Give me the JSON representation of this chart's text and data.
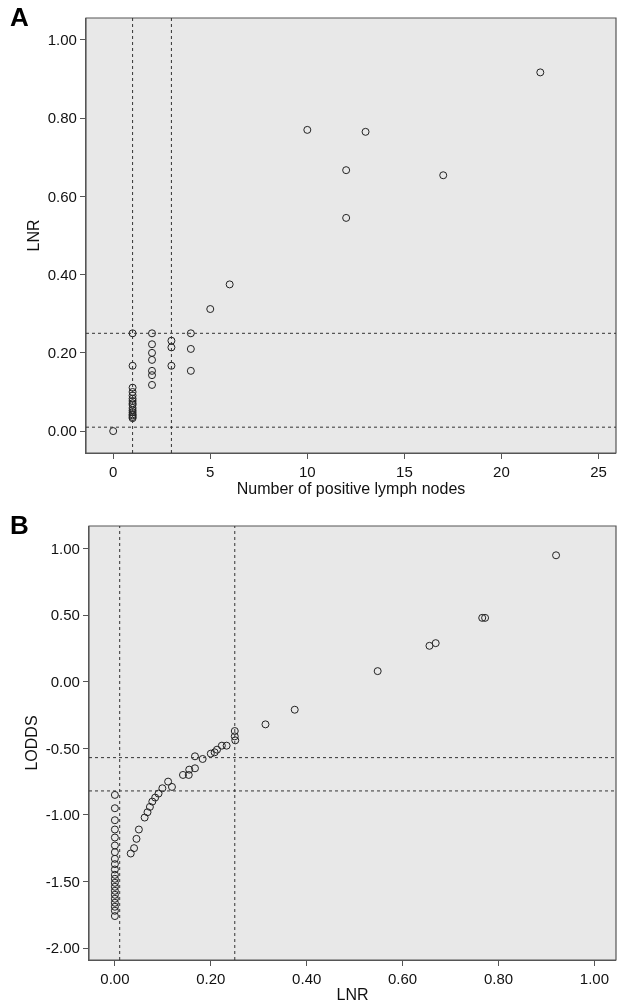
{
  "chart_data": [
    {
      "type": "scatter",
      "title": "A",
      "xlabel": "Number of positive lymph nodes",
      "ylabel": "LNR",
      "marker": "circle",
      "grid": false,
      "xlim": [
        -1.4,
        25.9
      ],
      "ylim": [
        -0.056,
        1.056
      ],
      "xticks": [
        0,
        5,
        10,
        15,
        20,
        25
      ],
      "yticks": [
        {
          "value": 0,
          "label": "0.00"
        },
        {
          "value": 0.2,
          "label": "0.20"
        },
        {
          "value": 0.4,
          "label": "0.40"
        },
        {
          "value": 0.6,
          "label": "0.60"
        },
        {
          "value": 0.8,
          "label": "0.80"
        },
        {
          "value": 1,
          "label": "1.00"
        }
      ],
      "ref_lines": [
        {
          "axis": "x",
          "value": 1,
          "line_style": "dotted",
          "color": "#333333"
        },
        {
          "axis": "x",
          "value": 3,
          "line_style": "dotted",
          "color": "#333333"
        },
        {
          "axis": "y",
          "value": 0.25,
          "line_style": "dotted",
          "color": "#333333"
        },
        {
          "axis": "y",
          "value": 0.01,
          "line_style": "dotted",
          "color": "#333333"
        }
      ],
      "series": [
        {
          "color": "#222222",
          "x": [
            0,
            1,
            1,
            1,
            1,
            1,
            1,
            1,
            1,
            1,
            1,
            1,
            1,
            1,
            1,
            1,
            1,
            2,
            2,
            2,
            2,
            2,
            2,
            2,
            3,
            3,
            3,
            4,
            4,
            4,
            5,
            6,
            10,
            12,
            12,
            13,
            17,
            22
          ],
          "values": [
            0,
            0.25,
            0.167,
            0.111,
            0.1,
            0.091,
            0.083,
            0.077,
            0.071,
            0.067,
            0.059,
            0.053,
            0.048,
            0.043,
            0.04,
            0.036,
            0.033,
            0.25,
            0.222,
            0.2,
            0.182,
            0.154,
            0.143,
            0.118,
            0.231,
            0.214,
            0.167,
            0.25,
            0.21,
            0.154,
            0.312,
            0.375,
            0.77,
            0.667,
            0.545,
            0.765,
            0.654,
            0.917
          ]
        }
      ]
    },
    {
      "type": "scatter",
      "title": "B",
      "xlabel": "LNR",
      "ylabel": "LODDS",
      "marker": "circle",
      "grid": false,
      "xlim": [
        -0.054,
        1.045
      ],
      "ylim": [
        -2.09,
        1.17
      ],
      "xticks": [
        {
          "value": 0,
          "label": "0.00"
        },
        {
          "value": 0.2,
          "label": "0.20"
        },
        {
          "value": 0.4,
          "label": "0.40"
        },
        {
          "value": 0.6,
          "label": "0.60"
        },
        {
          "value": 0.8,
          "label": "0.80"
        },
        {
          "value": 1,
          "label": "1.00"
        }
      ],
      "yticks": [
        {
          "value": -2,
          "label": "-2.00"
        },
        {
          "value": -1.5,
          "label": "-1.50"
        },
        {
          "value": -1,
          "label": "-1.00"
        },
        {
          "value": -0.5,
          "label": "-0.50"
        },
        {
          "value": 0,
          "label": "0.00"
        },
        {
          "value": 0.5,
          "label": "0.50"
        },
        {
          "value": 1,
          "label": "1.00"
        }
      ],
      "ref_lines": [
        {
          "axis": "x",
          "value": 0.01,
          "line_style": "dotted",
          "color": "#333333"
        },
        {
          "axis": "x",
          "value": 0.25,
          "line_style": "dotted",
          "color": "#333333"
        },
        {
          "axis": "y",
          "value": -0.57,
          "line_style": "dotted",
          "color": "#333333"
        },
        {
          "axis": "y",
          "value": -0.82,
          "line_style": "dotted",
          "color": "#333333"
        }
      ],
      "series": [
        {
          "color": "#222222",
          "x": [
            0,
            0,
            0,
            0,
            0,
            0,
            0,
            0,
            0,
            0,
            0,
            0,
            0,
            0,
            0,
            0,
            0,
            0,
            0,
            0,
            0,
            0.033,
            0.04,
            0.045,
            0.05,
            0.062,
            0.068,
            0.073,
            0.078,
            0.084,
            0.091,
            0.099,
            0.111,
            0.119,
            0.142,
            0.154,
            0.155,
            0.167,
            0.167,
            0.183,
            0.2,
            0.208,
            0.213,
            0.223,
            0.233,
            0.251,
            0.25,
            0.25,
            0.314,
            0.375,
            0.548,
            0.656,
            0.669,
            0.766,
            0.772,
            0.92
          ],
          "values": [
            -0.85,
            -0.95,
            -1.04,
            -1.11,
            -1.17,
            -1.23,
            -1.28,
            -1.33,
            -1.37,
            -1.41,
            -1.45,
            -1.48,
            -1.51,
            -1.54,
            -1.57,
            -1.6,
            -1.63,
            -1.66,
            -1.69,
            -1.72,
            -1.76,
            -1.29,
            -1.25,
            -1.18,
            -1.11,
            -1.02,
            -0.98,
            -0.94,
            -0.9,
            -0.87,
            -0.84,
            -0.8,
            -0.75,
            -0.79,
            -0.7,
            -0.7,
            -0.66,
            -0.65,
            -0.56,
            -0.58,
            -0.54,
            -0.53,
            -0.51,
            -0.48,
            -0.48,
            -0.44,
            -0.41,
            -0.37,
            -0.32,
            -0.21,
            0.08,
            0.27,
            0.29,
            0.48,
            0.48,
            0.95
          ]
        }
      ]
    }
  ]
}
